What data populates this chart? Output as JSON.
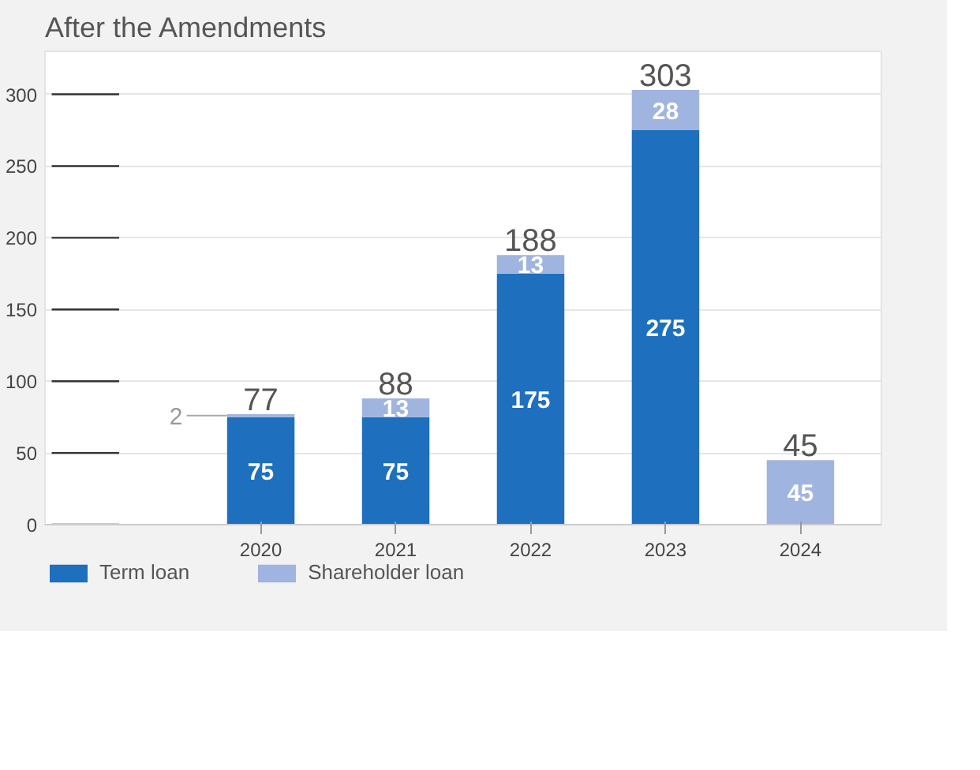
{
  "chart_data": {
    "type": "bar",
    "title": "After the Amendments",
    "categories": [
      "2020",
      "2021",
      "2022",
      "2023",
      "2024"
    ],
    "stacked": true,
    "series": [
      {
        "name": "Term loan",
        "color": "#1f6fbf",
        "values": [
          75,
          75,
          175,
          275,
          null
        ],
        "value_labels": [
          "75",
          "75",
          "175",
          "275",
          null
        ]
      },
      {
        "name": "Shareholder loan",
        "color": "#a0b4e0",
        "values": [
          2,
          13,
          13,
          28,
          45
        ],
        "value_labels": [
          "2",
          "13",
          "13",
          "28",
          "45"
        ]
      }
    ],
    "totals": [
      "77",
      "88",
      "188",
      "303",
      "45"
    ],
    "ylim": [
      0,
      330
    ],
    "yticks": [
      0,
      50,
      100,
      150,
      200,
      250,
      300
    ],
    "grid": "y",
    "legend": "bottom left"
  }
}
